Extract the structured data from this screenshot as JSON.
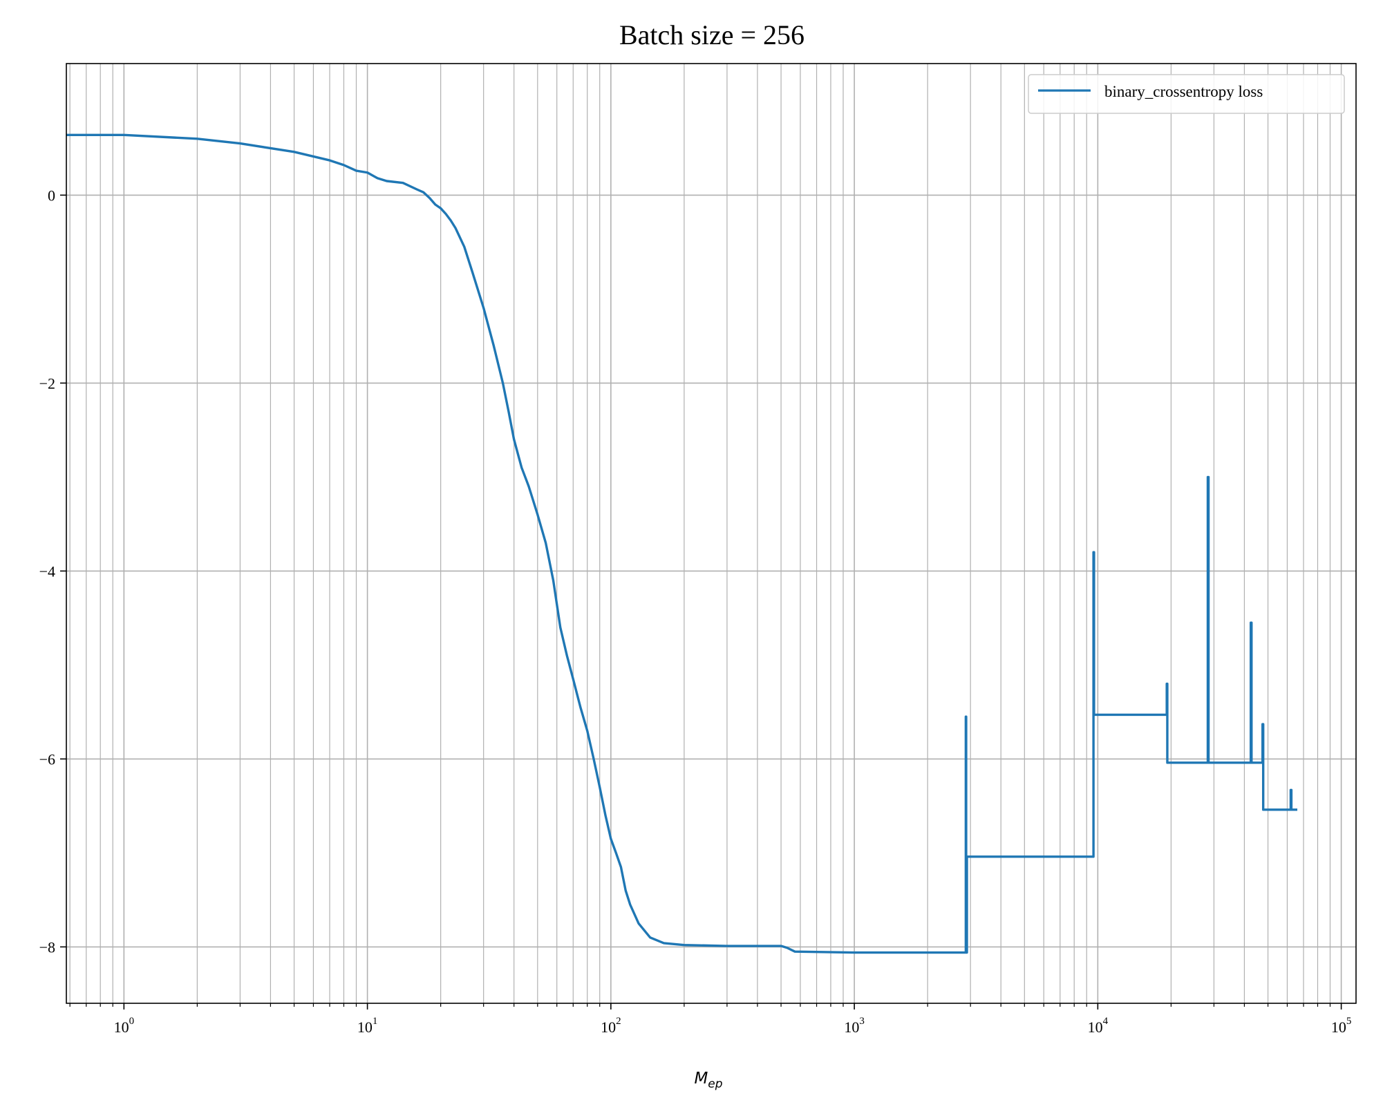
{
  "chart_data": {
    "type": "line",
    "title": "Batch size = 256",
    "xlabel_main": "M",
    "xlabel_sub": "ep",
    "ylabel": "",
    "x_scale": "log",
    "xlim": [
      0.58,
      115000
    ],
    "ylim": [
      -8.6,
      1.4
    ],
    "x_ticks": [
      {
        "base": "10",
        "exp": "0"
      },
      {
        "base": "10",
        "exp": "1"
      },
      {
        "base": "10",
        "exp": "2"
      },
      {
        "base": "10",
        "exp": "3"
      },
      {
        "base": "10",
        "exp": "4"
      },
      {
        "base": "10",
        "exp": "5"
      }
    ],
    "y_ticks": [
      "0",
      "−2",
      "−4",
      "−6",
      "−8"
    ],
    "y_tick_values": [
      0,
      -2,
      -4,
      -6,
      -8
    ],
    "grid": "major-and-minor",
    "legend_position": "top-right",
    "series": [
      {
        "name": "binary_crossentropy loss",
        "color": "#1f77b4",
        "points": [
          [
            0.58,
            0.64
          ],
          [
            1,
            0.64
          ],
          [
            2,
            0.6
          ],
          [
            3,
            0.55
          ],
          [
            5,
            0.46
          ],
          [
            7,
            0.37
          ],
          [
            8,
            0.32
          ],
          [
            9,
            0.26
          ],
          [
            10,
            0.24
          ],
          [
            11,
            0.18
          ],
          [
            12,
            0.15
          ],
          [
            14,
            0.13
          ],
          [
            16,
            0.06
          ],
          [
            17,
            0.03
          ],
          [
            18,
            -0.03
          ],
          [
            19,
            -0.1
          ],
          [
            20,
            -0.14
          ],
          [
            21,
            -0.2
          ],
          [
            22,
            -0.27
          ],
          [
            23,
            -0.35
          ],
          [
            25,
            -0.55
          ],
          [
            27,
            -0.82
          ],
          [
            30,
            -1.2
          ],
          [
            33,
            -1.6
          ],
          [
            36,
            -2.0
          ],
          [
            38,
            -2.3
          ],
          [
            40,
            -2.6
          ],
          [
            43,
            -2.9
          ],
          [
            46,
            -3.1
          ],
          [
            50,
            -3.4
          ],
          [
            54,
            -3.7
          ],
          [
            58,
            -4.1
          ],
          [
            62,
            -4.6
          ],
          [
            66,
            -4.9
          ],
          [
            70,
            -5.15
          ],
          [
            75,
            -5.45
          ],
          [
            80,
            -5.7
          ],
          [
            85,
            -6.0
          ],
          [
            90,
            -6.3
          ],
          [
            95,
            -6.6
          ],
          [
            100,
            -6.85
          ],
          [
            105,
            -7.0
          ],
          [
            110,
            -7.15
          ],
          [
            115,
            -7.4
          ],
          [
            120,
            -7.55
          ],
          [
            130,
            -7.75
          ],
          [
            145,
            -7.9
          ],
          [
            165,
            -7.96
          ],
          [
            200,
            -7.98
          ],
          [
            300,
            -7.99
          ],
          [
            500,
            -7.99
          ],
          [
            530,
            -8.01
          ],
          [
            570,
            -8.05
          ],
          [
            1000,
            -8.06
          ],
          [
            2870,
            -8.06
          ],
          [
            2870,
            -5.55
          ],
          [
            2880,
            -5.55
          ],
          [
            2880,
            -8.06
          ],
          [
            2900,
            -8.06
          ],
          [
            2900,
            -7.04
          ],
          [
            9600,
            -7.04
          ],
          [
            9600,
            -3.8
          ],
          [
            9650,
            -3.8
          ],
          [
            9650,
            -5.53
          ],
          [
            19200,
            -5.53
          ],
          [
            19200,
            -5.2
          ],
          [
            19300,
            -5.2
          ],
          [
            19300,
            -6.04
          ],
          [
            28300,
            -6.04
          ],
          [
            28300,
            -3.0
          ],
          [
            28500,
            -3.0
          ],
          [
            28500,
            -6.04
          ],
          [
            42500,
            -6.04
          ],
          [
            42500,
            -4.55
          ],
          [
            42800,
            -4.55
          ],
          [
            42800,
            -6.04
          ],
          [
            47500,
            -6.04
          ],
          [
            47500,
            -5.63
          ],
          [
            47800,
            -5.63
          ],
          [
            47800,
            -6.54
          ],
          [
            62000,
            -6.54
          ],
          [
            62000,
            -6.33
          ],
          [
            62400,
            -6.33
          ],
          [
            62400,
            -6.54
          ],
          [
            66000,
            -6.54
          ]
        ]
      }
    ]
  }
}
